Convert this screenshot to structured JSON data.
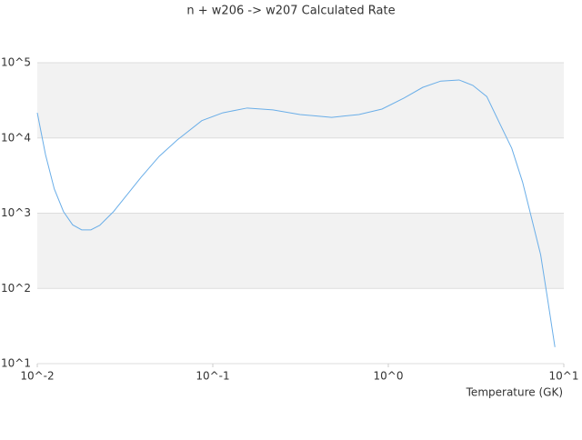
{
  "chart_data": {
    "type": "line",
    "title": "n + w206 -> w207 Calculated Rate",
    "x_label": "Temperature (GK)",
    "xscale": "log",
    "yscale": "log",
    "xlim": [
      0.01,
      10
    ],
    "ylim": [
      10,
      100000
    ],
    "xticks": [
      {
        "value": 0.01,
        "label": "10^-2"
      },
      {
        "value": 0.1,
        "label": "10^-1"
      },
      {
        "value": 1,
        "label": "10^0"
      },
      {
        "value": 10,
        "label": "10^1"
      }
    ],
    "yticks": [
      {
        "value": 10,
        "label": "10^1"
      },
      {
        "value": 100,
        "label": "10^2"
      },
      {
        "value": 1000,
        "label": "10^3"
      },
      {
        "value": 10000,
        "label": "10^4"
      },
      {
        "value": 100000,
        "label": "10^5"
      }
    ],
    "band_color": "#f2f2f2",
    "series": [
      {
        "color": "#6aaee8",
        "x": [
          0.01,
          0.01114,
          0.0125,
          0.0141,
          0.0159,
          0.0179,
          0.0202,
          0.0227,
          0.0272,
          0.0326,
          0.039,
          0.0495,
          0.0627,
          0.0866,
          0.114,
          0.157,
          0.22,
          0.314,
          0.476,
          0.68,
          0.92,
          1.23,
          1.57,
          1.99,
          2.53,
          3.03,
          3.64,
          4.36,
          5.05,
          5.82,
          6.55,
          7.38,
          8.1,
          8.9
        ],
        "values": [
          21600,
          6000,
          2100,
          1050,
          700,
          600,
          600,
          690,
          1050,
          1780,
          3000,
          5700,
          9400,
          17000,
          21600,
          25000,
          23600,
          20500,
          18800,
          20500,
          24200,
          34000,
          47000,
          57000,
          59000,
          50000,
          35500,
          14800,
          7300,
          2600,
          860,
          280,
          70,
          16.6
        ]
      }
    ]
  }
}
